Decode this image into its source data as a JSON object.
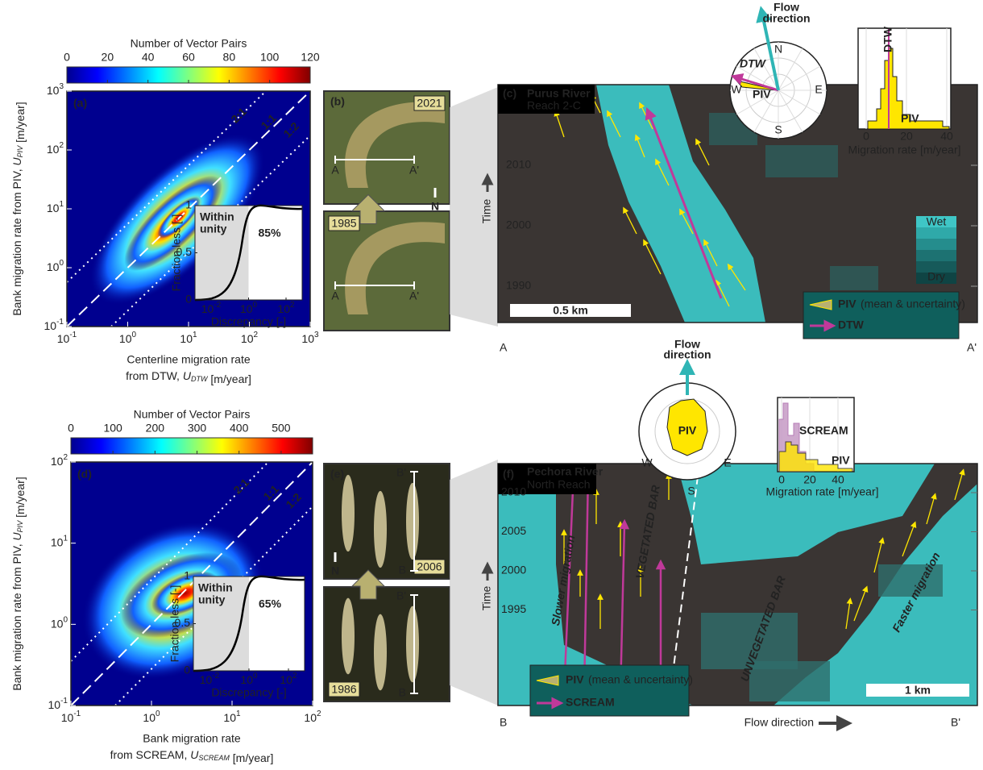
{
  "figure": {
    "panel_a": {
      "label": "(a)",
      "colorbar_title": "Number of Vector Pairs",
      "colorbar_ticks": [
        0,
        20,
        40,
        60,
        80,
        100,
        120
      ],
      "x_ticks": [
        {
          "base": "10",
          "exp": "-1"
        },
        {
          "base": "10",
          "exp": "0"
        },
        {
          "base": "10",
          "exp": "1"
        },
        {
          "base": "10",
          "exp": "2"
        },
        {
          "base": "10",
          "exp": "3"
        }
      ],
      "y_ticks": [
        {
          "base": "10",
          "exp": "-1"
        },
        {
          "base": "10",
          "exp": "0"
        },
        {
          "base": "10",
          "exp": "1"
        },
        {
          "base": "10",
          "exp": "2"
        },
        {
          "base": "10",
          "exp": "3"
        }
      ],
      "ylabel": [
        "Bank migration rate from PIV, ",
        "U",
        "PIV",
        " [m/year]"
      ],
      "xlabel_line1": "Centerline migration rate",
      "xlabel_line2": [
        "from DTW, ",
        "U",
        "DTW",
        " [m/year]"
      ],
      "ratio_labels": [
        "2:1",
        "1:1",
        "1:2"
      ],
      "inset": {
        "ylabel": "Fraction less [-]",
        "xlabel": "Discrepancy [-]",
        "shade_line1": "Within",
        "shade_line2": "unity",
        "percent": "85%",
        "y_ticks": [
          0,
          0.5,
          1
        ],
        "x_ticks": [
          {
            "base": "10",
            "exp": "-2"
          },
          {
            "base": "10",
            "exp": "0"
          },
          {
            "base": "10",
            "exp": "2"
          }
        ]
      }
    },
    "panel_b": {
      "label": "(b)",
      "years": [
        "2021",
        "1985"
      ],
      "start": "A",
      "end": "A'",
      "north": "N"
    },
    "panel_c": {
      "label": "(c)",
      "river": "Purus River",
      "reach": "Reach 2-C",
      "y_ticks": [
        2010,
        2000,
        1990
      ],
      "ylabel": "Time",
      "scale": "0.5 km",
      "legend": {
        "piv": "PIV",
        "piv_note": "(mean & uncertainty)",
        "dtw": "DTW"
      },
      "colorscale": [
        "Wet",
        "Dry"
      ],
      "start": "A",
      "end": "A'",
      "polar": {
        "flow_line1": "Flow",
        "flow_line2": "direction",
        "dirs": [
          "N",
          "E",
          "S",
          "W"
        ],
        "dtw": "DTW",
        "piv": "PIV"
      },
      "hist": {
        "x_ticks": [
          0,
          20,
          40
        ],
        "xlabel": "Migration rate [m/year]",
        "dtw": "DTW",
        "piv": "PIV"
      }
    },
    "panel_d": {
      "label": "(d)",
      "colorbar_title": "Number of Vector Pairs",
      "colorbar_ticks": [
        0,
        100,
        200,
        300,
        400,
        500
      ],
      "x_ticks": [
        {
          "base": "10",
          "exp": "-1"
        },
        {
          "base": "10",
          "exp": "0"
        },
        {
          "base": "10",
          "exp": "1"
        },
        {
          "base": "10",
          "exp": "2"
        }
      ],
      "y_ticks": [
        {
          "base": "10",
          "exp": "-1"
        },
        {
          "base": "10",
          "exp": "0"
        },
        {
          "base": "10",
          "exp": "1"
        },
        {
          "base": "10",
          "exp": "2"
        }
      ],
      "ylabel": [
        "Bank migration rate from PIV, ",
        "U",
        "PIV",
        " [m/year]"
      ],
      "xlabel_line1": "Bank migration rate",
      "xlabel_line2": [
        "from SCREAM, ",
        "U",
        "SCREAM",
        " [m/year]"
      ],
      "ratio_labels": [
        "2:1",
        "1:1",
        "1:2"
      ],
      "inset": {
        "ylabel": "Fraction less [-]",
        "xlabel": "Discrepancy [-]",
        "shade_line1": "Within",
        "shade_line2": "unity",
        "percent": "65%",
        "y_ticks": [
          0,
          0.5,
          1
        ],
        "x_ticks": [
          {
            "base": "10",
            "exp": "-2"
          },
          {
            "base": "10",
            "exp": "0"
          },
          {
            "base": "10",
            "exp": "2"
          }
        ]
      }
    },
    "panel_e": {
      "label": "(e)",
      "years": [
        "2006",
        "1986"
      ],
      "start": "B",
      "end": "B'",
      "north": "N"
    },
    "panel_f": {
      "label": "(f)",
      "river": "Pechora River",
      "reach": "North Reach",
      "y_ticks": [
        2010,
        2005,
        2000,
        1995
      ],
      "ylabel": "Time",
      "scale": "1 km",
      "annotations": [
        "Slower migration",
        "VEGETATED BAR",
        "UNVEGETATED BAR",
        "Faster migration"
      ],
      "legend": {
        "piv": "PIV",
        "piv_note": "(mean & uncertainty)",
        "scream": "SCREAM"
      },
      "start": "B",
      "end": "B'",
      "flow": "Flow direction",
      "polar": {
        "flow_line1": "Flow",
        "flow_line2": "direction",
        "dirs": [
          "W",
          "E",
          "S"
        ],
        "piv": "PIV"
      },
      "hist": {
        "x_ticks": [
          0,
          20,
          40
        ],
        "xlabel": "Migration rate [m/year]",
        "scream": "SCREAM",
        "piv": "PIV"
      }
    }
  }
}
